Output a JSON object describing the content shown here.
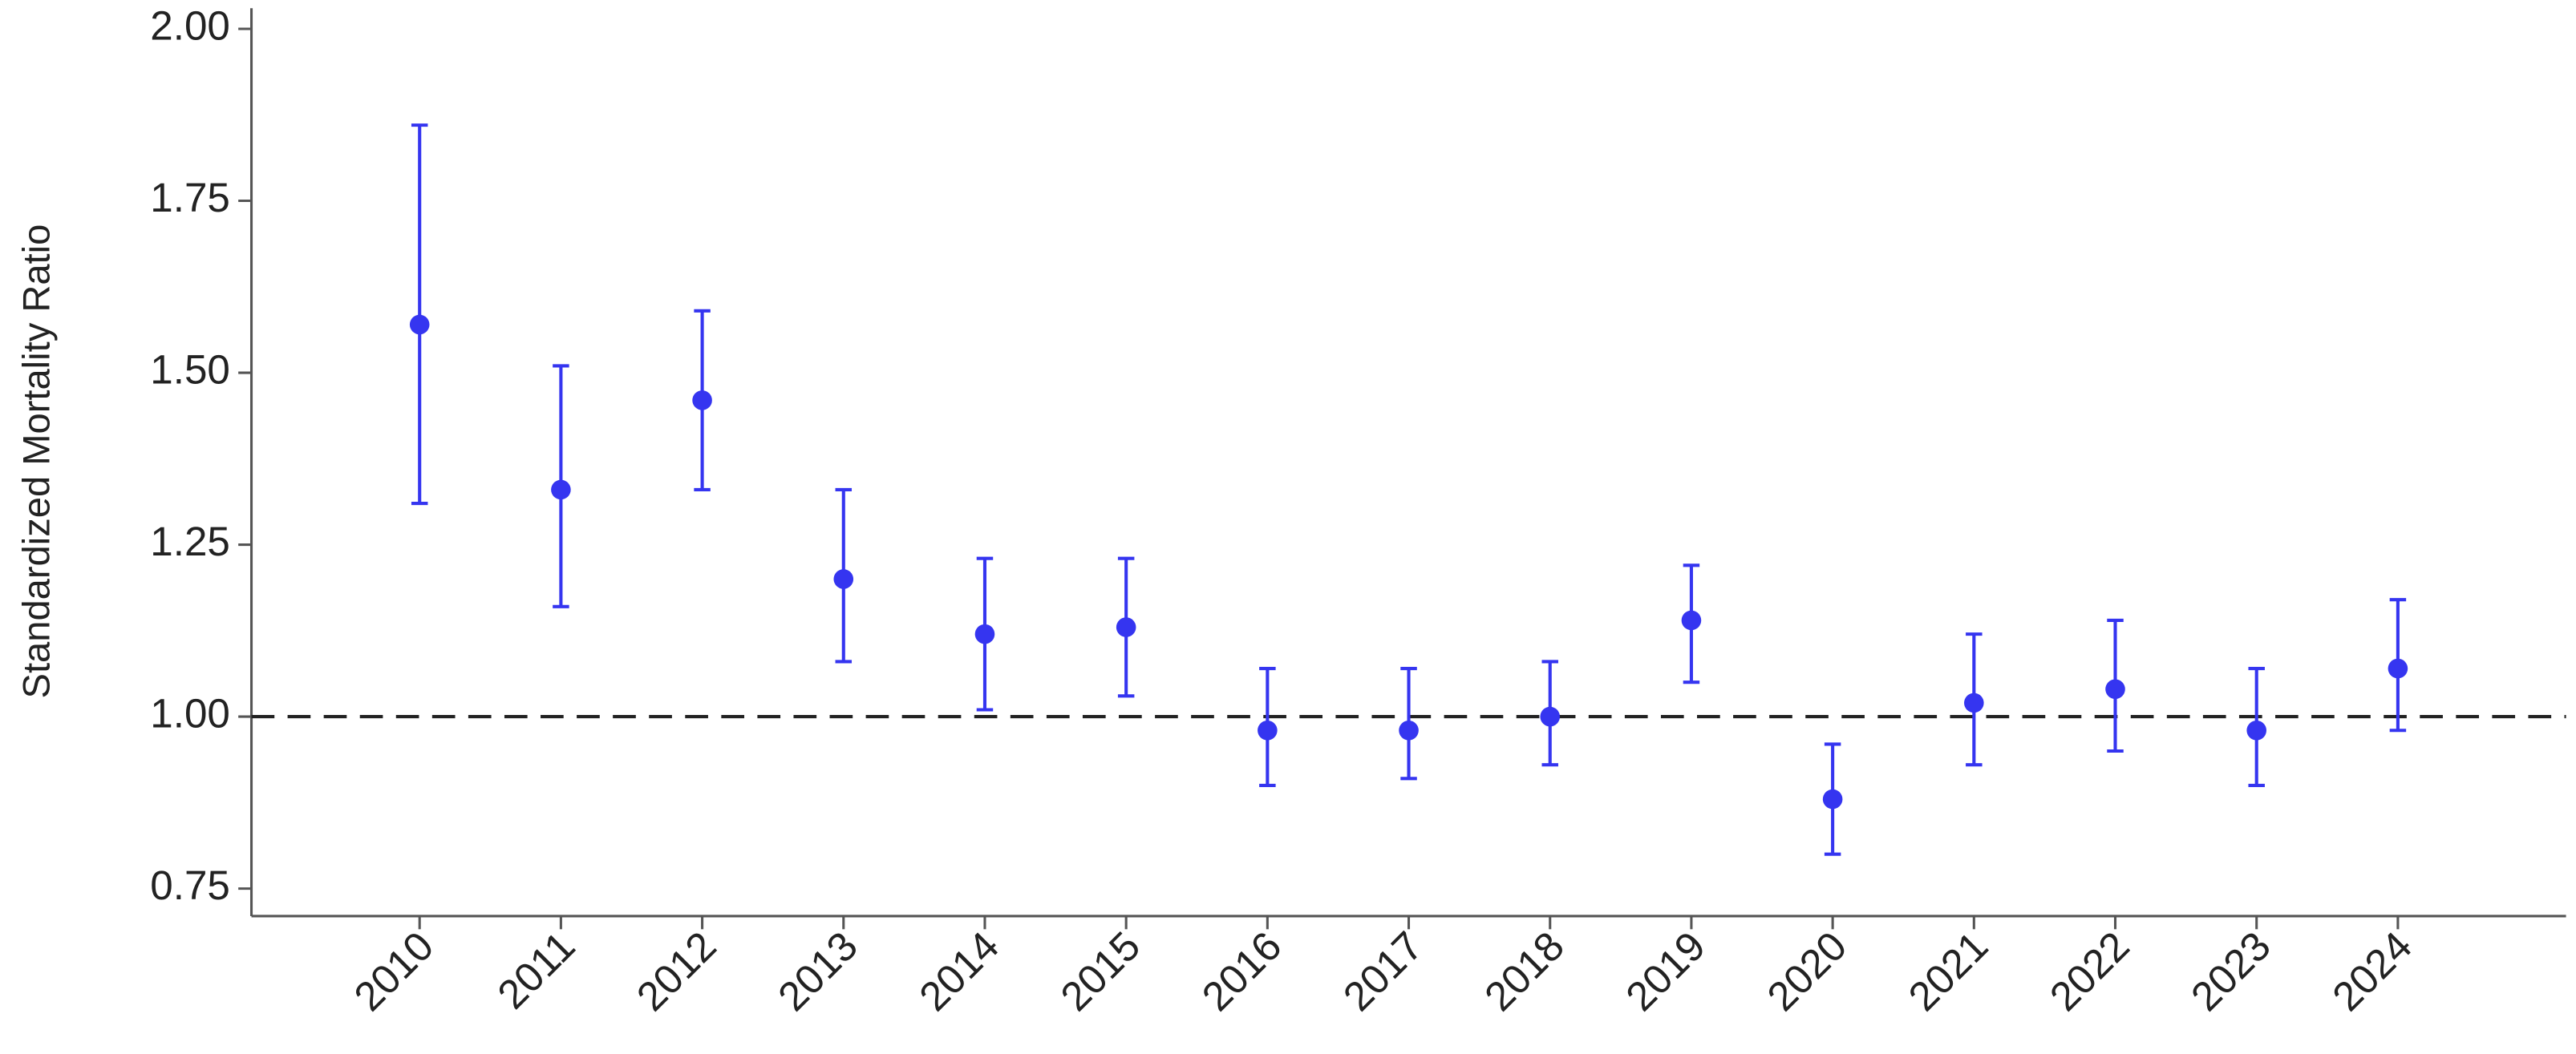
{
  "chart_data": {
    "type": "errorbar",
    "y_label": "Standardized Mortality Ratio",
    "categories": [
      "2010",
      "2011",
      "2012",
      "2013",
      "2014",
      "2015",
      "2016",
      "2017",
      "2018",
      "2019",
      "2020",
      "2021",
      "2022",
      "2023",
      "2024"
    ],
    "series": [
      {
        "color": "#3535f0",
        "values": [
          1.57,
          1.33,
          1.46,
          1.2,
          1.12,
          1.13,
          0.98,
          0.98,
          1.0,
          1.14,
          0.88,
          1.02,
          1.04,
          0.98,
          1.07
        ],
        "lower": [
          1.31,
          1.16,
          1.33,
          1.08,
          1.01,
          1.03,
          0.9,
          0.91,
          0.93,
          1.05,
          0.8,
          0.93,
          0.95,
          0.9,
          0.98
        ],
        "upper": [
          1.86,
          1.51,
          1.59,
          1.33,
          1.23,
          1.23,
          1.07,
          1.07,
          1.08,
          1.22,
          0.96,
          1.12,
          1.14,
          1.07,
          1.17
        ]
      }
    ],
    "reference_line": 1,
    "ylim": [
      0.71,
      2.03
    ],
    "yticks": [
      {
        "value": 0.75,
        "label": "0.75"
      },
      {
        "value": 1,
        "label": "1.00"
      },
      {
        "value": 1.25,
        "label": "1.25"
      },
      {
        "value": 1.5,
        "label": "1.50"
      },
      {
        "value": 1.75,
        "label": "1.75"
      },
      {
        "value": 2,
        "label": "2.00"
      }
    ],
    "grid": false
  }
}
